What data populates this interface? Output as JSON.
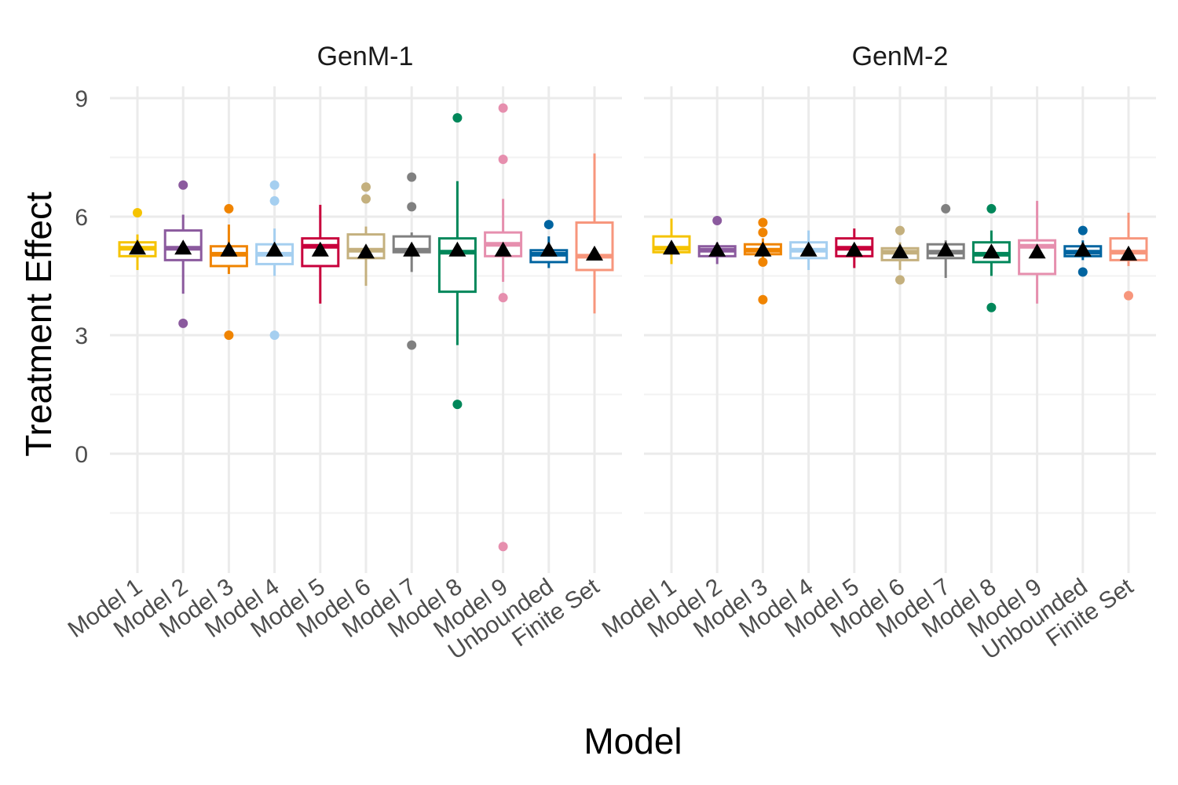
{
  "chart_data": {
    "type": "boxplot",
    "ylabel": "Treatment Effect",
    "xlabel": "Model",
    "ylim": [
      -3,
      9
    ],
    "yticks": [
      0,
      3,
      6,
      9
    ],
    "grid": true,
    "legend": "none",
    "mean_marker": "triangle",
    "colors": [
      "#f5c300",
      "#8b5a9e",
      "#f08400",
      "#a5cff0",
      "#c8003c",
      "#c4b07e",
      "#808080",
      "#00875a",
      "#e68fae",
      "#0064a0",
      "#f7967c"
    ],
    "panels": [
      {
        "title": "GenM-1",
        "categories": [
          "Model 1",
          "Model 2",
          "Model 3",
          "Model 4",
          "Model 5",
          "Model 6",
          "Model 7",
          "Model 8",
          "Model 9",
          "Unbounded",
          "Finite Set"
        ],
        "boxes": [
          {
            "whislo": 4.65,
            "q1": 5.0,
            "median": 5.2,
            "q3": 5.35,
            "whishi": 5.55,
            "mean": 5.2,
            "fliers": [
              6.1
            ]
          },
          {
            "whislo": 4.05,
            "q1": 4.9,
            "median": 5.2,
            "q3": 5.65,
            "whishi": 6.05,
            "mean": 5.2,
            "fliers": [
              6.8,
              3.3
            ]
          },
          {
            "whislo": 4.55,
            "q1": 4.75,
            "median": 5.05,
            "q3": 5.25,
            "whishi": 5.8,
            "mean": 5.15,
            "fliers": [
              6.2,
              3.0
            ]
          },
          {
            "whislo": 4.5,
            "q1": 4.8,
            "median": 5.05,
            "q3": 5.3,
            "whishi": 5.7,
            "mean": 5.15,
            "fliers": [
              6.8,
              6.4,
              3.0
            ]
          },
          {
            "whislo": 3.8,
            "q1": 4.75,
            "median": 5.25,
            "q3": 5.45,
            "whishi": 6.3,
            "mean": 5.15,
            "fliers": []
          },
          {
            "whislo": 4.25,
            "q1": 4.95,
            "median": 5.15,
            "q3": 5.55,
            "whishi": 5.75,
            "mean": 5.1,
            "fliers": [
              6.75,
              6.45
            ]
          },
          {
            "whislo": 4.6,
            "q1": 5.1,
            "median": 5.15,
            "q3": 5.5,
            "whishi": 5.6,
            "mean": 5.15,
            "fliers": [
              7.0,
              6.25,
              2.75
            ]
          },
          {
            "whislo": 2.75,
            "q1": 4.1,
            "median": 5.1,
            "q3": 5.45,
            "whishi": 6.9,
            "mean": 5.15,
            "fliers": [
              8.5,
              1.25
            ]
          },
          {
            "whislo": 4.35,
            "q1": 5.0,
            "median": 5.3,
            "q3": 5.6,
            "whishi": 6.45,
            "mean": 5.15,
            "fliers": [
              8.75,
              7.45,
              3.95,
              -2.35
            ]
          },
          {
            "whislo": 4.7,
            "q1": 4.85,
            "median": 5.05,
            "q3": 5.15,
            "whishi": 5.5,
            "mean": 5.15,
            "fliers": [
              5.8
            ]
          },
          {
            "whislo": 3.55,
            "q1": 4.65,
            "median": 5.0,
            "q3": 5.85,
            "whishi": 7.6,
            "mean": 5.05,
            "fliers": []
          }
        ]
      },
      {
        "title": "GenM-2",
        "categories": [
          "Model 1",
          "Model 2",
          "Model 3",
          "Model 4",
          "Model 5",
          "Model 6",
          "Model 7",
          "Model 8",
          "Model 9",
          "Unbounded",
          "Finite Set"
        ],
        "boxes": [
          {
            "whislo": 4.8,
            "q1": 5.1,
            "median": 5.2,
            "q3": 5.5,
            "whishi": 5.95,
            "mean": 5.2,
            "fliers": []
          },
          {
            "whislo": 4.8,
            "q1": 5.0,
            "median": 5.15,
            "q3": 5.25,
            "whishi": 5.35,
            "mean": 5.15,
            "fliers": [
              5.9
            ]
          },
          {
            "whislo": 4.95,
            "q1": 5.05,
            "median": 5.15,
            "q3": 5.3,
            "whishi": 5.45,
            "mean": 5.15,
            "fliers": [
              5.85,
              5.6,
              4.85,
              3.9
            ]
          },
          {
            "whislo": 4.65,
            "q1": 4.95,
            "median": 5.15,
            "q3": 5.35,
            "whishi": 5.65,
            "mean": 5.15,
            "fliers": []
          },
          {
            "whislo": 4.7,
            "q1": 5.0,
            "median": 5.2,
            "q3": 5.45,
            "whishi": 5.7,
            "mean": 5.15,
            "fliers": []
          },
          {
            "whislo": 4.65,
            "q1": 4.9,
            "median": 5.1,
            "q3": 5.2,
            "whishi": 5.35,
            "mean": 5.1,
            "fliers": [
              5.65,
              4.4
            ]
          },
          {
            "whislo": 4.45,
            "q1": 4.95,
            "median": 5.1,
            "q3": 5.3,
            "whishi": 5.4,
            "mean": 5.15,
            "fliers": [
              6.2
            ]
          },
          {
            "whislo": 4.5,
            "q1": 4.85,
            "median": 5.05,
            "q3": 5.35,
            "whishi": 5.65,
            "mean": 5.1,
            "fliers": [
              6.2,
              3.7
            ]
          },
          {
            "whislo": 3.8,
            "q1": 4.55,
            "median": 5.25,
            "q3": 5.4,
            "whishi": 6.4,
            "mean": 5.1,
            "fliers": []
          },
          {
            "whislo": 4.9,
            "q1": 5.0,
            "median": 5.1,
            "q3": 5.25,
            "whishi": 5.4,
            "mean": 5.15,
            "fliers": [
              5.65,
              4.6
            ]
          },
          {
            "whislo": 4.75,
            "q1": 4.9,
            "median": 5.1,
            "q3": 5.45,
            "whishi": 6.1,
            "mean": 5.05,
            "fliers": [
              4.0
            ]
          }
        ]
      }
    ]
  }
}
